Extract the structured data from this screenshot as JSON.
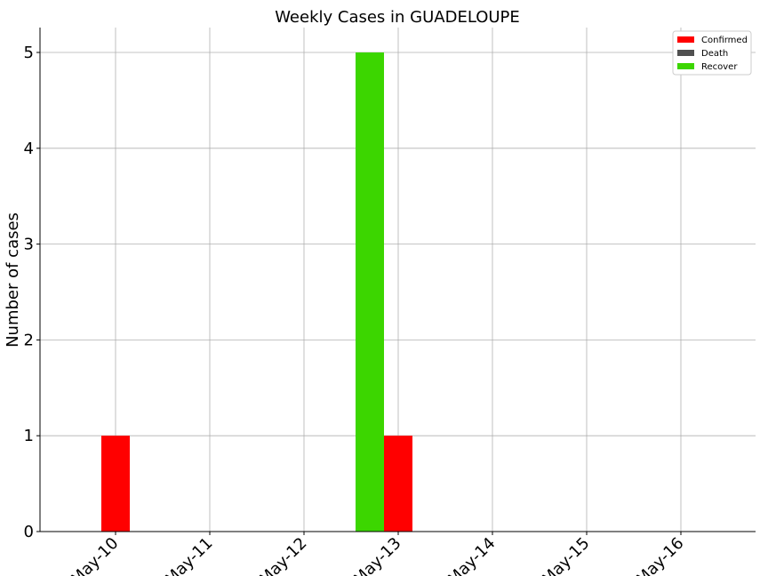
{
  "chart_data": {
    "type": "bar",
    "title": "Weekly Cases in GUADELOUPE",
    "xlabel": "",
    "ylabel": "Number of cases",
    "categories": [
      "May-10",
      "May-11",
      "May-12",
      "May-13",
      "May-14",
      "May-15",
      "May-16"
    ],
    "series": [
      {
        "name": "Confirmed",
        "color": "#ff0000",
        "values": [
          1,
          0,
          0,
          1,
          0,
          0,
          0
        ]
      },
      {
        "name": "Death",
        "color": "#505050",
        "values": [
          0,
          0,
          0,
          0,
          0,
          0,
          0
        ]
      },
      {
        "name": "Recover",
        "color": "#3cd600",
        "values": [
          0,
          0,
          0,
          5,
          0,
          0,
          0
        ]
      }
    ],
    "ylim": [
      0,
      5.25
    ],
    "yticks": [
      0,
      1,
      2,
      3,
      4,
      5
    ],
    "grid": true,
    "legend_position": "top-right"
  }
}
